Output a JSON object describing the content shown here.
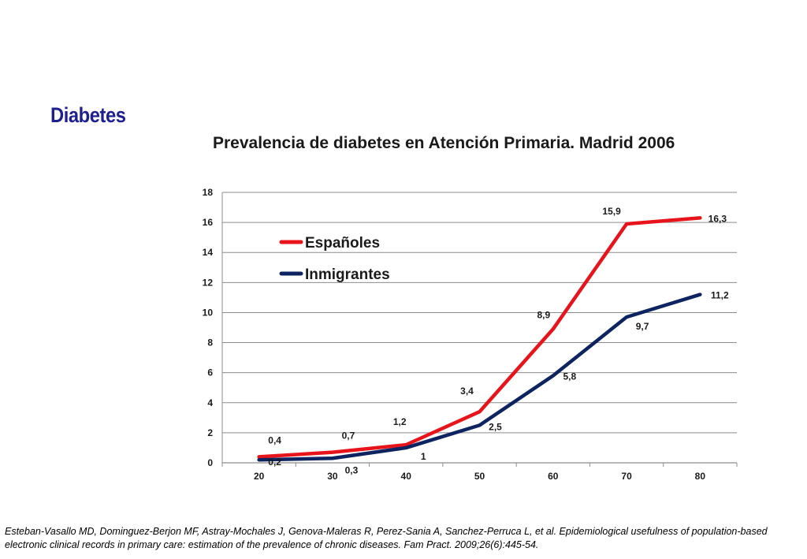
{
  "slide": {
    "heading": "Diabetes",
    "citation": "Esteban-Vasallo MD, Dominguez-Berjon MF, Astray-Mochales J, Genova-Maleras R, Perez-Sania A, Sanchez-Perruca L, et al. Epidemiological usefulness of population-based electronic clinical records in primary care: estimation of the prevalence of chronic diseases. Fam Pract. 2009;26(6):445-54."
  },
  "chart_data": {
    "type": "line",
    "title": "Prevalencia de diabetes en Atención Primaria.  Madrid 2006",
    "xlabel": "",
    "ylabel": "",
    "x": [
      20,
      30,
      40,
      50,
      60,
      70,
      80
    ],
    "x_tick_labels": [
      "20",
      "30",
      "40",
      "50",
      "60",
      "70",
      "80"
    ],
    "ylim": [
      0,
      18
    ],
    "y_ticks": [
      0,
      2,
      4,
      6,
      8,
      10,
      12,
      14,
      16,
      18
    ],
    "y_tick_labels": [
      "0",
      "2",
      "4",
      "6",
      "8",
      "10",
      "12",
      "14",
      "16",
      "18"
    ],
    "grid": true,
    "legend_position": "top-left",
    "series": [
      {
        "name": "Españoles",
        "color": "#e8141b",
        "values": [
          0.4,
          0.7,
          1.2,
          3.4,
          8.9,
          15.9,
          16.3
        ],
        "labels": [
          "0,4",
          "0,7",
          "1,2",
          "3,4",
          "8,9",
          "15,9",
          "16,3"
        ]
      },
      {
        "name": "Inmigrantes",
        "color": "#0d2461",
        "values": [
          0.2,
          0.3,
          1.0,
          2.5,
          5.8,
          9.7,
          11.2
        ],
        "labels": [
          "0,2",
          "0,3",
          "1",
          "2,5",
          "5,8",
          "9,7",
          "11,2"
        ]
      }
    ]
  }
}
